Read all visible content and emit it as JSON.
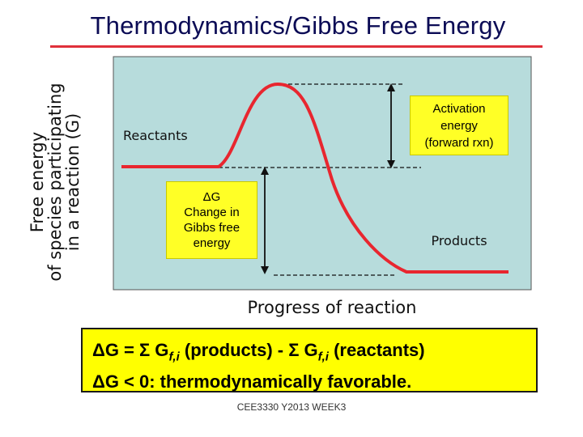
{
  "title": "Thermodynamics/Gibbs Free Energy",
  "y_axis_label": [
    "Free energy",
    "of species participating",
    "in a reaction (G)"
  ],
  "x_axis_label": "Progress of reaction",
  "labels": {
    "reactants": "Reactants",
    "products": "Products",
    "activation_energy": [
      "Activation",
      "energy",
      "(forward rxn)"
    ],
    "delta_g": [
      "ΔG",
      "Change in",
      "Gibbs free",
      "energy"
    ]
  },
  "formula": {
    "line1": {
      "prefix": "ΔG = Σ G",
      "sub1": "f,i",
      "mid": " (products) - Σ G",
      "sub2": "f,i",
      "suffix": " (reactants)"
    },
    "line2": "ΔG < 0: thermodynamically favorable."
  },
  "footer": "CEE3330 Y2013 WEEK3",
  "colors": {
    "plot_background": "#b7dcdc",
    "curve": "#e8262f",
    "label_box": "#ffff26",
    "formula_box": "#ffff00",
    "title_text": "#0b0b55"
  }
}
